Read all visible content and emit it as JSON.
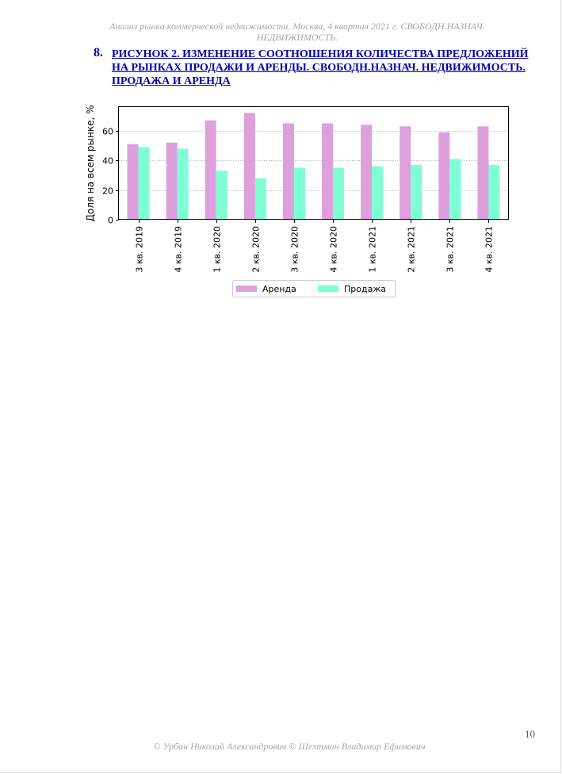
{
  "header": {
    "running_title": "Анализ рынка коммерческой недвижимости.  Москва,  4 квартал 2021 г.   СВОБОДН.НАЗНАЧ. НЕДВИЖИМОСТЬ."
  },
  "section": {
    "number": "8.",
    "title": "РИСУНОК 2. ИЗМЕНЕНИЕ СООТНОШЕНИЯ КОЛИЧЕСТВА ПРЕДЛОЖЕНИЙ НА РЫНКАХ ПРОДАЖИ И АРЕНДЫ. СВОБОДН.НАЗНАЧ. НЕДВИЖИМОСТЬ. ПРОДАЖА И АРЕНДА"
  },
  "chart_data": {
    "type": "bar",
    "categories": [
      "3 кв. 2019",
      "4 кв. 2019",
      "1 кв. 2020",
      "2 кв. 2020",
      "3 кв. 2020",
      "4 кв. 2020",
      "1 кв. 2021",
      "2 кв. 2021",
      "3 кв. 2021",
      "4 кв. 2021"
    ],
    "series": [
      {
        "name": "Аренда",
        "color": "#dda0dd",
        "values": [
          51,
          52,
          67,
          72,
          65,
          65,
          64,
          63,
          59,
          63
        ]
      },
      {
        "name": "Продажа",
        "color": "#7fffd4",
        "values": [
          49,
          48,
          33,
          28,
          35,
          35,
          36,
          37,
          41,
          37
        ]
      }
    ],
    "title": "",
    "xlabel": "",
    "ylabel": "Доля на всем рынке, %",
    "ylim": [
      0,
      76
    ],
    "yticks": [
      0,
      20,
      40,
      60
    ],
    "grid": true,
    "legend_position": "bottom-center"
  },
  "footer": {
    "copyright": "© Урбан Николай Александрович   © Шехтман Владимир Ефимович",
    "page_number": "10"
  }
}
